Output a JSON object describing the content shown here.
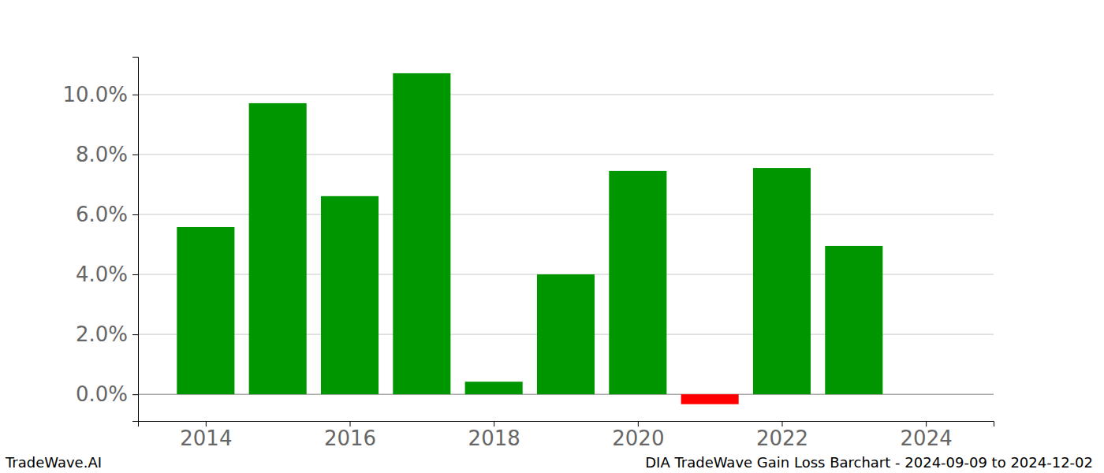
{
  "chart_data": {
    "type": "bar",
    "title": "DIA TradeWave Gain Loss Barchart - 2024-09-09 to 2024-12-02",
    "annotations": [
      "TradeWave.AI"
    ],
    "x": [
      2014,
      2015,
      2016,
      2017,
      2018,
      2019,
      2020,
      2021,
      2022,
      2023,
      2024
    ],
    "values": [
      5.58,
      9.71,
      6.61,
      10.71,
      0.42,
      4.0,
      7.45,
      -0.33,
      7.55,
      4.95,
      0
    ],
    "colors": [
      "#009600",
      "#009600",
      "#009600",
      "#009600",
      "#009600",
      "#009600",
      "#009600",
      "#ff0000",
      "#009600",
      "#009600",
      "#009600"
    ],
    "xlim": [
      2013.06,
      2024.94
    ],
    "xticks": [
      2014,
      2016,
      2018,
      2020,
      2022,
      2024
    ],
    "ylim": [
      -0.89,
      11.26
    ],
    "yticks": [
      {
        "value": 0,
        "label": "0.0%"
      },
      {
        "value": 2,
        "label": "2.0%"
      },
      {
        "value": 4,
        "label": "4.0%"
      },
      {
        "value": 6,
        "label": "6.0%"
      },
      {
        "value": 8,
        "label": "8.0%"
      },
      {
        "value": 10,
        "label": "10.0%"
      }
    ],
    "grid": true
  }
}
